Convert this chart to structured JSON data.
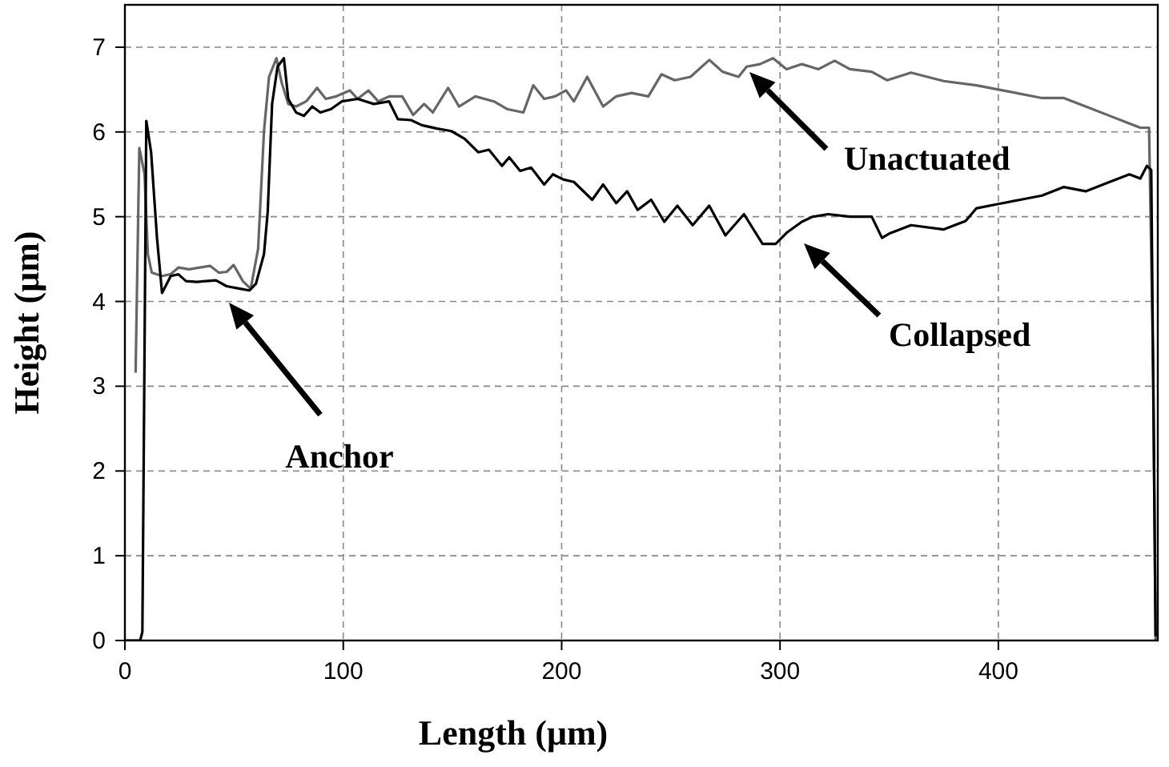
{
  "chart_data": {
    "type": "line",
    "xlabel": "Length (μm)",
    "ylabel": "Height (μm)",
    "xlim": [
      0,
      473
    ],
    "ylim": [
      0,
      7.5
    ],
    "xticks": [
      0,
      100,
      200,
      300,
      400
    ],
    "yticks": [
      0,
      1,
      2,
      3,
      4,
      5,
      6,
      7
    ],
    "grid": true,
    "marker": "none",
    "line_style": "solid",
    "series": [
      {
        "color": "#666666",
        "x": [
          4.9,
          6.6,
          9,
          10.5,
          12.3,
          17,
          20.8,
          24.5,
          29.4,
          34.3,
          39,
          43,
          46.6,
          49.8,
          54,
          57.6,
          61,
          63.7,
          66,
          69.4,
          71.8,
          74.8,
          78.4,
          83,
          88,
          92,
          96.8,
          103,
          106.6,
          111.5,
          116,
          121,
          127,
          132,
          137,
          141,
          148,
          153,
          160.5,
          169,
          175,
          182.5,
          187,
          192,
          197,
          202,
          205.6,
          211.7,
          219,
          225,
          232,
          239.7,
          245.7,
          251.8,
          259,
          267.6,
          273.7,
          281,
          284.7,
          290.8,
          296.8,
          303,
          310,
          317.6,
          325,
          332,
          342,
          349,
          360,
          375,
          390,
          400,
          410,
          420,
          430,
          440,
          450,
          460,
          465,
          469,
          471,
          472
        ],
        "values": [
          3.16,
          5.81,
          5.5,
          4.56,
          4.34,
          4.3,
          4.32,
          4.4,
          4.38,
          4.4,
          4.42,
          4.34,
          4.35,
          4.43,
          4.24,
          4.15,
          4.62,
          6.01,
          6.65,
          6.87,
          6.58,
          6.33,
          6.3,
          6.36,
          6.52,
          6.39,
          6.42,
          6.49,
          6.39,
          6.49,
          6.36,
          6.42,
          6.42,
          6.2,
          6.33,
          6.23,
          6.52,
          6.3,
          6.42,
          6.36,
          6.27,
          6.23,
          6.55,
          6.39,
          6.42,
          6.49,
          6.36,
          6.65,
          6.3,
          6.42,
          6.46,
          6.42,
          6.68,
          6.61,
          6.65,
          6.85,
          6.71,
          6.65,
          6.77,
          6.8,
          6.87,
          6.74,
          6.8,
          6.74,
          6.84,
          6.74,
          6.71,
          6.61,
          6.7,
          6.6,
          6.55,
          6.5,
          6.45,
          6.4,
          6.4,
          6.3,
          6.2,
          6.1,
          6.05,
          6.05,
          3,
          0
        ]
      },
      {
        "color": "#000000",
        "x": [
          0,
          7,
          8,
          9.8,
          12,
          14.7,
          17,
          21,
          24.5,
          28,
          33,
          37,
          41.7,
          46.6,
          52.7,
          57,
          60,
          63.7,
          65.4,
          67.4,
          69.9,
          72.8,
          74.8,
          78.4,
          82,
          85.8,
          89.5,
          94.4,
          99.3,
          106.6,
          114,
          121,
          125,
          131,
          136,
          143,
          149.5,
          155.6,
          161.8,
          166.7,
          172.7,
          176,
          181,
          186,
          192,
          196,
          200.7,
          205.6,
          214,
          219,
          225,
          230,
          234.8,
          241,
          247,
          253,
          260,
          267.6,
          275,
          283.5,
          292,
          298,
          303,
          310,
          315,
          322,
          332,
          342,
          346.7,
          350,
          360,
          375,
          385,
          390,
          400,
          410,
          420,
          430,
          440,
          450,
          460,
          465,
          468,
          470,
          472
        ],
        "values": [
          0,
          0,
          0.1,
          6.13,
          5.76,
          4.75,
          4.1,
          4.3,
          4.32,
          4.24,
          4.23,
          4.24,
          4.25,
          4.18,
          4.15,
          4.13,
          4.21,
          4.56,
          5.06,
          6.33,
          6.77,
          6.87,
          6.39,
          6.23,
          6.19,
          6.3,
          6.23,
          6.27,
          6.36,
          6.39,
          6.33,
          6.36,
          6.15,
          6.14,
          6.08,
          6.04,
          6.01,
          5.92,
          5.76,
          5.79,
          5.6,
          5.7,
          5.54,
          5.58,
          5.38,
          5.5,
          5.44,
          5.41,
          5.2,
          5.38,
          5.16,
          5.3,
          5.08,
          5.2,
          4.94,
          5.13,
          4.9,
          5.13,
          4.78,
          5.03,
          4.68,
          4.68,
          4.81,
          4.94,
          5,
          5.03,
          5,
          5,
          4.75,
          4.8,
          4.9,
          4.85,
          4.95,
          5.1,
          5.15,
          5.2,
          5.25,
          5.35,
          5.3,
          5.4,
          5.5,
          5.45,
          5.6,
          5.55,
          0.05
        ]
      }
    ],
    "annotations": [
      "Anchor",
      "Unactuated",
      "Collapsed"
    ]
  }
}
